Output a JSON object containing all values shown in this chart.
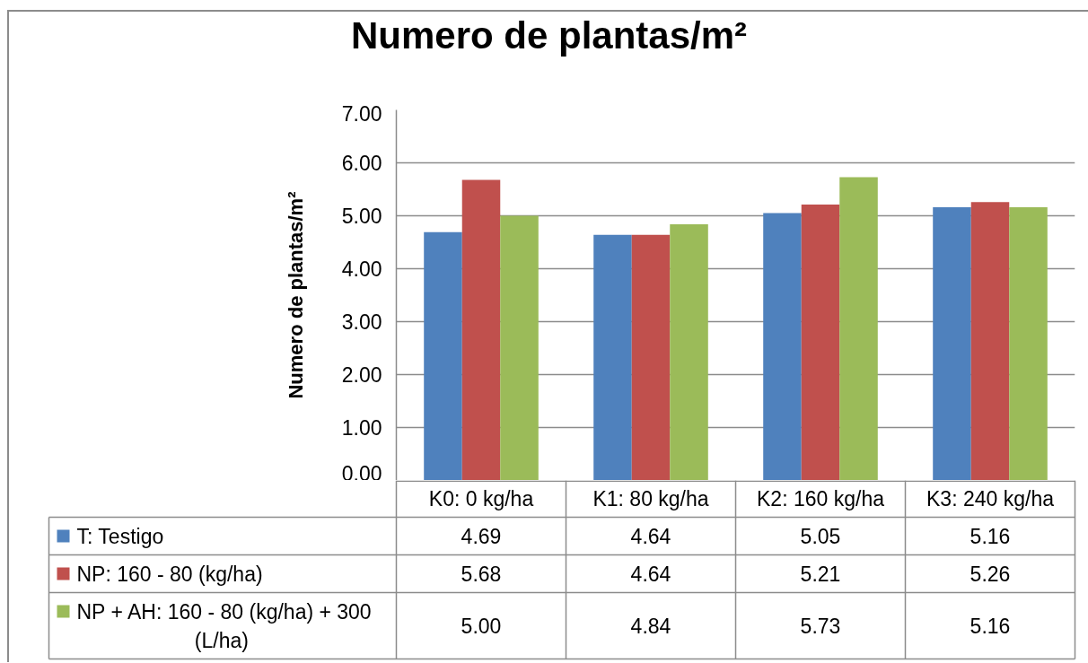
{
  "chart_data": {
    "type": "bar",
    "title": "Numero de plantas/m²",
    "ylabel": "Numero de plantas/m²",
    "categories": [
      "K0: 0 kg/ha",
      "K1: 80 kg/ha",
      "K2: 160 kg/ha",
      "K3: 240 kg/ha"
    ],
    "series": [
      {
        "name": "T: Testigo",
        "color": "#4f81bd",
        "values": [
          4.69,
          4.64,
          5.05,
          5.16
        ],
        "value_labels": [
          "4.69",
          "4.64",
          "5.05",
          "5.16"
        ]
      },
      {
        "name": "NP: 160 - 80 (kg/ha)",
        "color": "#c0504d",
        "values": [
          5.68,
          4.64,
          5.21,
          5.26
        ],
        "value_labels": [
          "5.68",
          "4.64",
          "5.21",
          "5.26"
        ]
      },
      {
        "name": "NP + AH: 160 - 80 (kg/ha) + 300 (L/ha)",
        "color": "#9bbb59",
        "values": [
          5.0,
          4.84,
          5.73,
          5.16
        ],
        "value_labels": [
          "5.00",
          "4.84",
          "5.73",
          "5.16"
        ]
      }
    ],
    "ylim": [
      0,
      7
    ],
    "yticks": [
      {
        "value": 0,
        "label": "0.00"
      },
      {
        "value": 1,
        "label": "1.00"
      },
      {
        "value": 2,
        "label": "2.00"
      },
      {
        "value": 3,
        "label": "3.00"
      },
      {
        "value": 4,
        "label": "4.00"
      },
      {
        "value": 5,
        "label": "5.00"
      },
      {
        "value": 6,
        "label": "6.00"
      },
      {
        "value": 7,
        "label": "7.00"
      }
    ],
    "grid": "y",
    "legend": "bottom"
  }
}
